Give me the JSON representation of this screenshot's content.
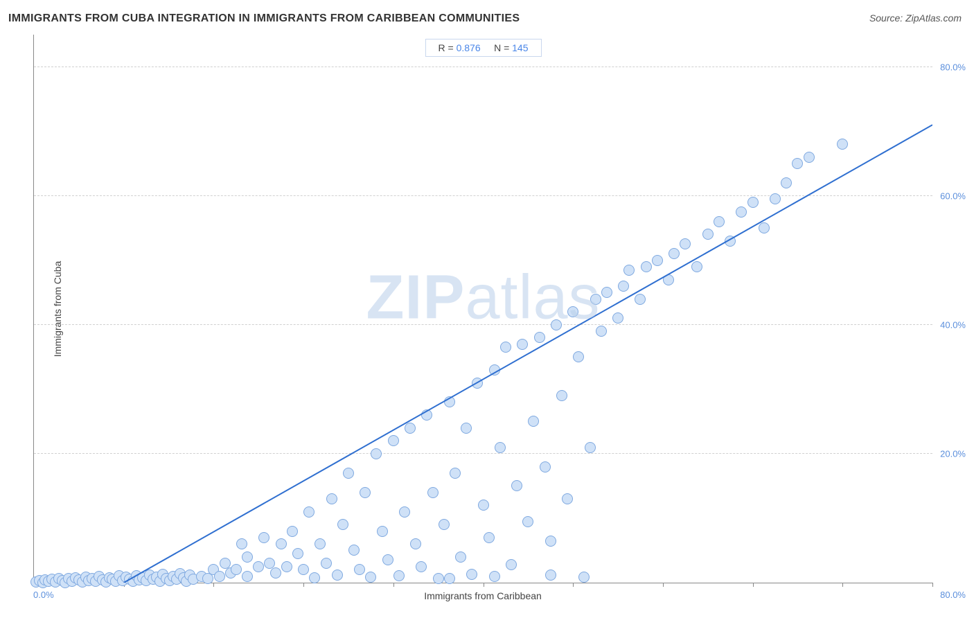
{
  "title": "IMMIGRANTS FROM CUBA INTEGRATION IN IMMIGRANTS FROM CARIBBEAN COMMUNITIES",
  "source_label": "Source: ",
  "source_value": "ZipAtlas.com",
  "stats": {
    "r_label": "R = ",
    "r_value": "0.876",
    "n_label": "N = ",
    "n_value": "145"
  },
  "watermark": {
    "bold": "ZIP",
    "light": "atlas"
  },
  "chart": {
    "type": "scatter",
    "xlabel": "Immigrants from Caribbean",
    "ylabel": "Immigrants from Cuba",
    "xlim": [
      0,
      80
    ],
    "ylim": [
      0,
      85
    ],
    "x_min_label": "0.0%",
    "x_max_label": "80.0%",
    "yticks": [
      20,
      40,
      60,
      80
    ],
    "ytick_labels": [
      "20.0%",
      "40.0%",
      "60.0%",
      "80.0%"
    ],
    "xtick_positions": [
      8,
      16,
      24,
      32,
      40,
      48,
      56,
      64,
      72,
      80
    ],
    "grid_color": "#d0d0d0",
    "axis_color": "#888888",
    "tick_label_color": "#5b8fdc",
    "background_color": "#ffffff",
    "point_fill": "#cfe1f7",
    "point_stroke": "#7fa9e0",
    "point_radius": 8,
    "trend_color": "#2f6fd0",
    "trend_width": 2,
    "trend_line": {
      "x1": 8,
      "y1": 0,
      "x2": 80,
      "y2": 71
    },
    "points": [
      [
        0.2,
        0.1
      ],
      [
        0.5,
        0.3
      ],
      [
        0.8,
        0.0
      ],
      [
        1.0,
        0.4
      ],
      [
        1.3,
        0.2
      ],
      [
        1.6,
        0.5
      ],
      [
        1.9,
        0.1
      ],
      [
        2.2,
        0.6
      ],
      [
        2.5,
        0.3
      ],
      [
        2.8,
        0.0
      ],
      [
        3.1,
        0.7
      ],
      [
        3.4,
        0.2
      ],
      [
        3.7,
        0.8
      ],
      [
        4.0,
        0.4
      ],
      [
        4.3,
        0.1
      ],
      [
        4.6,
        0.9
      ],
      [
        4.9,
        0.3
      ],
      [
        5.2,
        0.6
      ],
      [
        5.5,
        0.2
      ],
      [
        5.8,
        1.0
      ],
      [
        6.1,
        0.4
      ],
      [
        6.4,
        0.1
      ],
      [
        6.7,
        0.8
      ],
      [
        7.0,
        0.5
      ],
      [
        7.3,
        0.2
      ],
      [
        7.6,
        1.1
      ],
      [
        7.9,
        0.3
      ],
      [
        8.2,
        0.9
      ],
      [
        8.5,
        0.5
      ],
      [
        8.8,
        0.2
      ],
      [
        9.1,
        1.1
      ],
      [
        9.4,
        0.4
      ],
      [
        9.7,
        0.8
      ],
      [
        10.0,
        0.3
      ],
      [
        10.3,
        1.2
      ],
      [
        10.6,
        0.5
      ],
      [
        10.9,
        0.9
      ],
      [
        11.2,
        0.2
      ],
      [
        11.5,
        1.3
      ],
      [
        11.8,
        0.6
      ],
      [
        12.1,
        0.3
      ],
      [
        12.4,
        1.0
      ],
      [
        12.7,
        0.5
      ],
      [
        13.0,
        1.4
      ],
      [
        13.3,
        0.8
      ],
      [
        13.6,
        0.2
      ],
      [
        13.9,
        1.2
      ],
      [
        14.2,
        0.5
      ],
      [
        14.9,
        1.0
      ],
      [
        15.5,
        0.6
      ],
      [
        16.0,
        2.0
      ],
      [
        16.5,
        1.0
      ],
      [
        17.0,
        3.0
      ],
      [
        17.5,
        1.5
      ],
      [
        18.0,
        2.0
      ],
      [
        18.5,
        6.0
      ],
      [
        19.0,
        1.0
      ],
      [
        19.0,
        4.0
      ],
      [
        20.0,
        2.5
      ],
      [
        20.5,
        7.0
      ],
      [
        21.0,
        3.0
      ],
      [
        21.5,
        1.5
      ],
      [
        22.0,
        6.0
      ],
      [
        22.5,
        2.5
      ],
      [
        23.0,
        8.0
      ],
      [
        23.5,
        4.5
      ],
      [
        24.0,
        2.0
      ],
      [
        24.5,
        11.0
      ],
      [
        25.0,
        0.8
      ],
      [
        25.5,
        6.0
      ],
      [
        26.0,
        3.0
      ],
      [
        26.5,
        13.0
      ],
      [
        27.0,
        1.2
      ],
      [
        27.5,
        9.0
      ],
      [
        28.0,
        17.0
      ],
      [
        28.5,
        5.0
      ],
      [
        29.0,
        2.0
      ],
      [
        29.5,
        14.0
      ],
      [
        30.0,
        0.9
      ],
      [
        30.5,
        20.0
      ],
      [
        31.0,
        8.0
      ],
      [
        31.5,
        3.5
      ],
      [
        32.0,
        22.0
      ],
      [
        32.5,
        1.1
      ],
      [
        33.0,
        11.0
      ],
      [
        33.5,
        24.0
      ],
      [
        34.0,
        6.0
      ],
      [
        34.5,
        2.5
      ],
      [
        35.0,
        26.0
      ],
      [
        35.5,
        14.0
      ],
      [
        36.0,
        0.7
      ],
      [
        36.5,
        9.0
      ],
      [
        37.0,
        28.0
      ],
      [
        37.5,
        17.0
      ],
      [
        38.0,
        4.0
      ],
      [
        38.5,
        24.0
      ],
      [
        39.0,
        1.3
      ],
      [
        39.5,
        31.0
      ],
      [
        40.0,
        12.0
      ],
      [
        40.5,
        7.0
      ],
      [
        41.0,
        33.0
      ],
      [
        41.5,
        21.0
      ],
      [
        42.0,
        36.5
      ],
      [
        42.5,
        2.8
      ],
      [
        43.0,
        15.0
      ],
      [
        43.5,
        37.0
      ],
      [
        44.0,
        9.5
      ],
      [
        44.5,
        25.0
      ],
      [
        45.0,
        38.0
      ],
      [
        45.5,
        18.0
      ],
      [
        46.0,
        6.5
      ],
      [
        46.5,
        40.0
      ],
      [
        47.0,
        29.0
      ],
      [
        47.5,
        13.0
      ],
      [
        48.0,
        42.0
      ],
      [
        48.5,
        35.0
      ],
      [
        49.0,
        0.9
      ],
      [
        49.5,
        21.0
      ],
      [
        50.0,
        44.0
      ],
      [
        50.5,
        39.0
      ],
      [
        51.0,
        45.0
      ],
      [
        52.0,
        41.0
      ],
      [
        52.5,
        46.0
      ],
      [
        53.0,
        48.5
      ],
      [
        54.0,
        44.0
      ],
      [
        54.5,
        49.0
      ],
      [
        55.5,
        50.0
      ],
      [
        56.5,
        47.0
      ],
      [
        57.0,
        51.0
      ],
      [
        58.0,
        52.5
      ],
      [
        59.0,
        49.0
      ],
      [
        60.0,
        54.0
      ],
      [
        61.0,
        56.0
      ],
      [
        62.0,
        53.0
      ],
      [
        63.0,
        57.5
      ],
      [
        64.0,
        59.0
      ],
      [
        65.0,
        55.0
      ],
      [
        66.0,
        59.5
      ],
      [
        67.0,
        62.0
      ],
      [
        68.0,
        65.0
      ],
      [
        69.0,
        66.0
      ],
      [
        72.0,
        68.0
      ],
      [
        37.0,
        0.6
      ],
      [
        41.0,
        1.0
      ],
      [
        46.0,
        1.2
      ]
    ]
  }
}
